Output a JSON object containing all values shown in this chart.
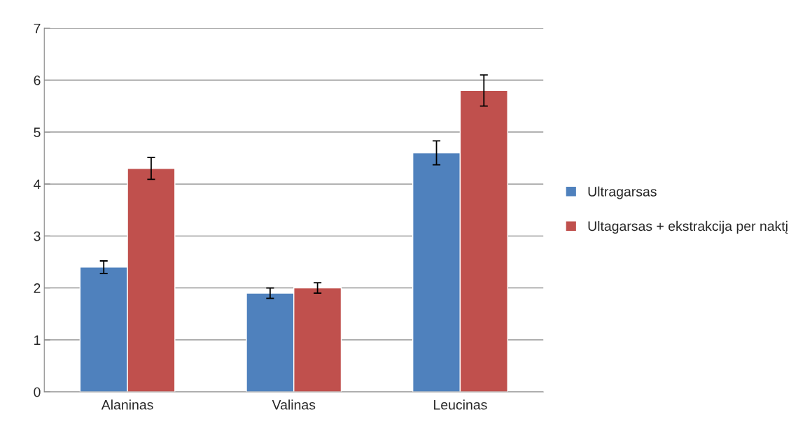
{
  "chart_data": {
    "type": "bar",
    "categories": [
      "Alaninas",
      "Valinas",
      "Leucinas"
    ],
    "series": [
      {
        "name": "Ultragarsas",
        "color": "#4f81bd",
        "values": [
          2.4,
          1.9,
          4.6
        ],
        "errors": [
          0.12,
          0.1,
          0.23
        ]
      },
      {
        "name": "Ultagarsas + ekstrakcija per naktį",
        "color": "#c0504d",
        "values": [
          4.3,
          2.0,
          5.8
        ],
        "errors": [
          0.21,
          0.1,
          0.3
        ]
      }
    ],
    "ylim": [
      0,
      7
    ],
    "yticks": [
      0,
      1,
      2,
      3,
      4,
      5,
      6,
      7
    ],
    "grid": "y",
    "legend": "right"
  }
}
